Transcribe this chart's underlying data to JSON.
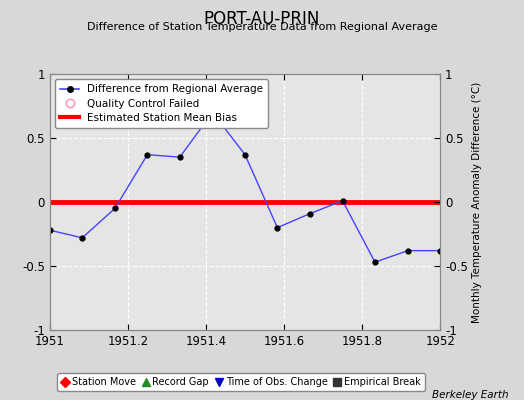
{
  "title": "PORT-AU-PRIN",
  "subtitle": "Difference of Station Temperature Data from Regional Average",
  "ylabel_right": "Monthly Temperature Anomaly Difference (°C)",
  "watermark": "Berkeley Earth",
  "xlim": [
    1951.0,
    1952.0
  ],
  "ylim": [
    -1.0,
    1.0
  ],
  "xticks": [
    1951.0,
    1951.2,
    1951.4,
    1951.6,
    1951.8,
    1952.0
  ],
  "yticks": [
    -1.0,
    -0.5,
    0.0,
    0.5,
    1.0
  ],
  "background_color": "#d8d8d8",
  "plot_bg_color": "#e5e5e5",
  "grid_color": "#ffffff",
  "bias_value": 0.0,
  "line_x": [
    1951.0,
    1951.083,
    1951.167,
    1951.25,
    1951.333,
    1951.417,
    1951.5,
    1951.583,
    1951.667,
    1951.75,
    1951.833,
    1951.917,
    1952.0
  ],
  "line_y": [
    -0.22,
    -0.28,
    -0.05,
    0.37,
    0.35,
    0.7,
    0.37,
    -0.2,
    -0.09,
    0.01,
    -0.47,
    -0.38,
    -0.38
  ],
  "line_color": "#4444ff",
  "marker_color": "#000000",
  "bias_color": "#ff0000",
  "bottom_legend_items": [
    {
      "label": "Station Move",
      "color": "#ff0000",
      "marker": "D"
    },
    {
      "label": "Record Gap",
      "color": "#228B22",
      "marker": "^"
    },
    {
      "label": "Time of Obs. Change",
      "color": "#0000cc",
      "marker": "v"
    },
    {
      "label": "Empirical Break",
      "color": "#333333",
      "marker": "s"
    }
  ]
}
